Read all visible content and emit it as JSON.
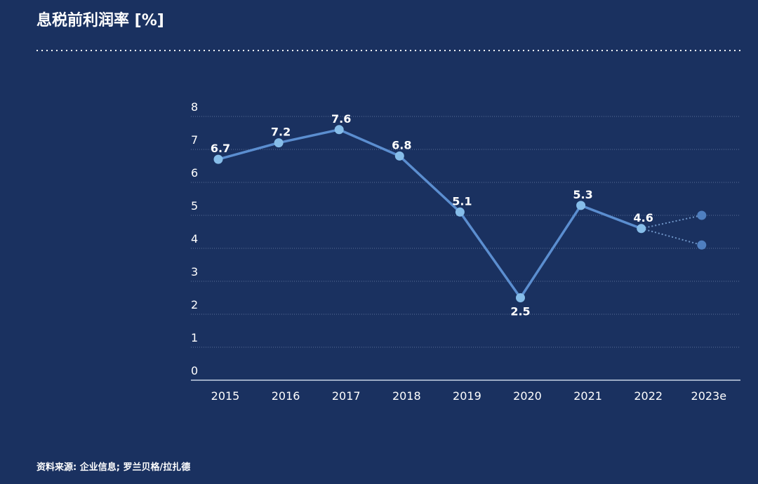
{
  "chart_data": {
    "type": "line",
    "title": "息税前利润率 [%]",
    "source": "资料来源: 企业信息; 罗兰贝格/拉扎德",
    "categories": [
      "2015",
      "2016",
      "2017",
      "2018",
      "2019",
      "2020",
      "2021",
      "2022",
      "2023e"
    ],
    "series": [
      {
        "color": "#5b8ed0",
        "point_color": "#86bde9",
        "line_style": "solid",
        "show_labels": true,
        "values": [
          6.7,
          7.2,
          7.6,
          6.8,
          5.1,
          2.5,
          5.3,
          4.6,
          null
        ]
      },
      {
        "color": "#6f95c8",
        "point_color": "#4f7fc0",
        "line_style": "dotted",
        "show_labels": false,
        "values": [
          null,
          null,
          null,
          null,
          null,
          null,
          null,
          4.6,
          5.0
        ]
      },
      {
        "color": "#6f95c8",
        "point_color": "#4f7fc0",
        "line_style": "dotted",
        "show_labels": false,
        "values": [
          null,
          null,
          null,
          null,
          null,
          null,
          null,
          4.6,
          4.1
        ]
      }
    ],
    "ylim": [
      0,
      8
    ],
    "yticks": [
      0,
      1,
      2,
      3,
      4,
      5,
      6,
      7,
      8
    ],
    "grid": true
  }
}
